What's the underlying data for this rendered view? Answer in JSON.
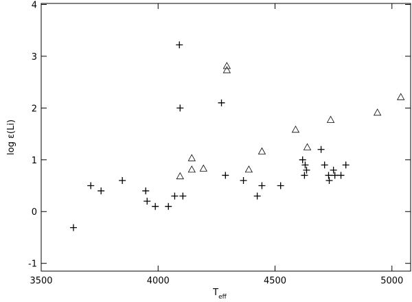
{
  "chart_data": {
    "type": "scatter",
    "x_label": "T",
    "x_label_subscript": "eff",
    "y_label": "log ε(Li)",
    "xlim": [
      3500,
      5080
    ],
    "ylim": [
      -1.15,
      4.02
    ],
    "xticks": [
      3500,
      4000,
      4500,
      5000
    ],
    "yticks": [
      -1,
      0,
      1,
      2,
      3,
      4
    ],
    "series": [
      {
        "marker": "plus",
        "color": "#000000",
        "x": [
          3638,
          3712,
          3756,
          3847,
          3947,
          3953,
          3988,
          4044,
          4071,
          4091,
          4094,
          4106,
          4271,
          4288,
          4365,
          4424,
          4444,
          4524,
          4618,
          4626,
          4629,
          4635,
          4697,
          4712,
          4729,
          4732,
          4750,
          4756,
          4782,
          4803
        ],
        "values": [
          -0.31,
          0.5,
          0.4,
          0.6,
          0.4,
          0.2,
          0.1,
          0.1,
          0.3,
          3.22,
          2.0,
          0.3,
          2.1,
          0.7,
          0.6,
          0.3,
          0.5,
          0.5,
          1.0,
          0.7,
          0.9,
          0.8,
          1.2,
          0.9,
          0.7,
          0.6,
          0.8,
          0.7,
          0.7,
          0.9
        ]
      },
      {
        "marker": "triangle",
        "color": "#000000",
        "x": [
          4094,
          4144,
          4144,
          4194,
          4294,
          4294,
          4388,
          4444,
          4588,
          4638,
          4738,
          4938,
          5038
        ],
        "values": [
          0.67,
          1.02,
          0.8,
          0.82,
          2.8,
          2.72,
          0.8,
          1.15,
          1.57,
          1.23,
          1.76,
          1.9,
          2.2
        ]
      }
    ]
  }
}
